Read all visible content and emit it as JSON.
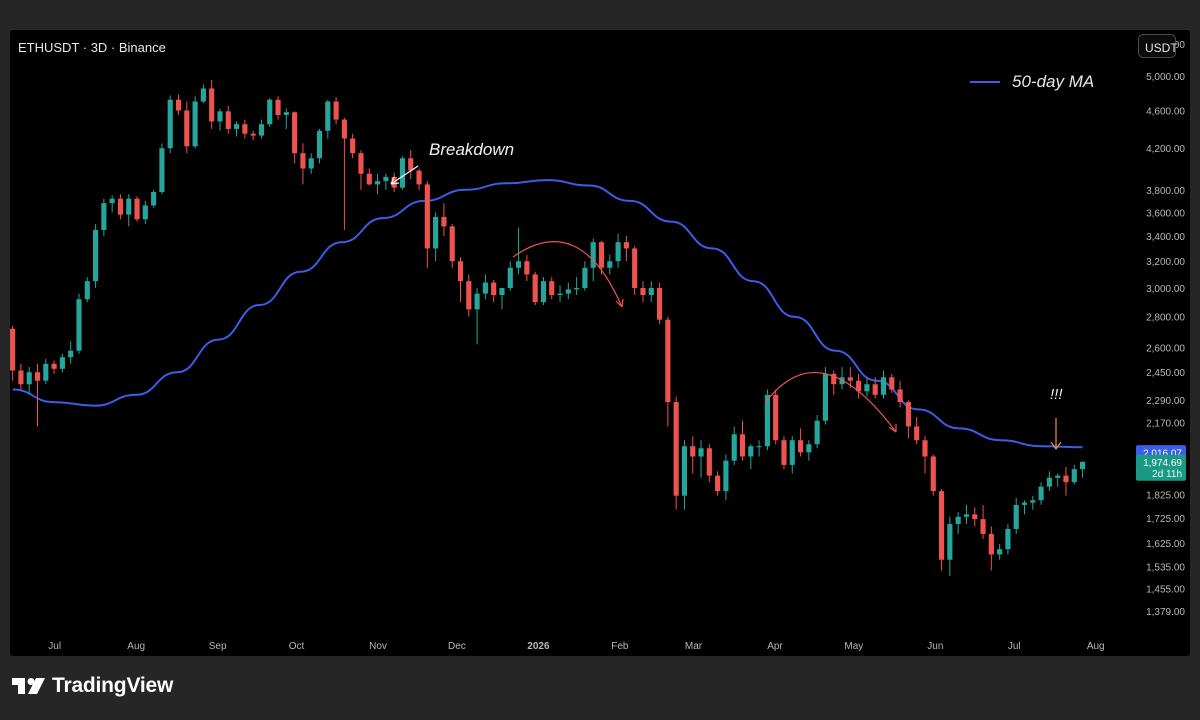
{
  "symbol": {
    "title": "ETHUSDT · 3D · Binance"
  },
  "currency_button": "USDT",
  "legend": {
    "ma_label": "50-day MA",
    "ma_color": "#3b5de7"
  },
  "brand": {
    "name": "TradingView"
  },
  "colors": {
    "up": "#26a69a",
    "down": "#ef5350",
    "ma": "#3b5de7",
    "annotation_arrow": "#ef5350",
    "marker_arrow": "#f0903a"
  },
  "annotations": {
    "breakdown": "Breakdown",
    "alert": "!!!"
  },
  "price_tags": {
    "ma_value": "2,016.07",
    "last_price": "1,974.69",
    "countdown": "2d 11h"
  },
  "chart_data": {
    "type": "candlestick",
    "title": "ETHUSDT · 3D · Binance",
    "y_scale": "log",
    "ylim": [
      1330,
      5450
    ],
    "y_ticks": [
      "5,400.00",
      "5,000.00",
      "4,600.00",
      "4,200.00",
      "3,800.00",
      "3,600.00",
      "3,400.00",
      "3,200.00",
      "3,000.00",
      "2,800.00",
      "2,600.00",
      "2,450.00",
      "2,290.00",
      "2,170.00",
      "2,016.07",
      "1,974.69",
      "1,825.00",
      "1,725.00",
      "1,625.00",
      "1,535.00",
      "1,455.00",
      "1,379.00"
    ],
    "y_tick_values": [
      5400,
      5000,
      4600,
      4200,
      3800,
      3600,
      3400,
      3200,
      3000,
      2800,
      2600,
      2450,
      2290,
      2170,
      2016.07,
      1974.69,
      1825,
      1725,
      1625,
      1535,
      1455,
      1379
    ],
    "x_ticks": [
      "Jul",
      "Aug",
      "Sep",
      "Oct",
      "Nov",
      "Dec",
      "2026",
      "Feb",
      "Mar",
      "Apr",
      "May",
      "Jun",
      "Jul",
      "Aug"
    ],
    "x_tick_dates": [
      "2025-07-01",
      "2025-08-01",
      "2025-09-01",
      "2025-10-01",
      "2025-11-01",
      "2025-12-01",
      "2026-01-01",
      "2026-02-01",
      "2026-03-01",
      "2026-04-01",
      "2026-05-01",
      "2026-06-01",
      "2026-07-01",
      "2026-08-01"
    ],
    "xlim": [
      "2025-06-14",
      "2026-08-11"
    ],
    "candles_ohlc": [
      [
        2720,
        2740,
        2400,
        2460
      ],
      [
        2460,
        2500,
        2350,
        2380
      ],
      [
        2380,
        2480,
        2330,
        2450
      ],
      [
        2450,
        2500,
        2150,
        2400
      ],
      [
        2400,
        2530,
        2380,
        2500
      ],
      [
        2500,
        2520,
        2440,
        2470
      ],
      [
        2470,
        2560,
        2450,
        2540
      ],
      [
        2540,
        2640,
        2500,
        2580
      ],
      [
        2580,
        2960,
        2560,
        2920
      ],
      [
        2920,
        3080,
        2900,
        3050
      ],
      [
        3050,
        3500,
        3000,
        3450
      ],
      [
        3450,
        3720,
        3400,
        3680
      ],
      [
        3680,
        3750,
        3600,
        3720
      ],
      [
        3720,
        3760,
        3540,
        3580
      ],
      [
        3580,
        3760,
        3480,
        3720
      ],
      [
        3720,
        3740,
        3520,
        3540
      ],
      [
        3540,
        3700,
        3500,
        3660
      ],
      [
        3660,
        3800,
        3640,
        3780
      ],
      [
        3780,
        4250,
        3760,
        4200
      ],
      [
        4200,
        4770,
        4150,
        4720
      ],
      [
        4720,
        4780,
        4550,
        4600
      ],
      [
        4600,
        4700,
        4150,
        4220
      ],
      [
        4220,
        4760,
        4200,
        4700
      ],
      [
        4700,
        4900,
        4680,
        4850
      ],
      [
        4850,
        4950,
        4400,
        4480
      ],
      [
        4480,
        4620,
        4380,
        4590
      ],
      [
        4590,
        4650,
        4350,
        4400
      ],
      [
        4400,
        4480,
        4320,
        4450
      ],
      [
        4450,
        4500,
        4300,
        4350
      ],
      [
        4350,
        4380,
        4280,
        4330
      ],
      [
        4330,
        4500,
        4300,
        4450
      ],
      [
        4450,
        4740,
        4420,
        4720
      ],
      [
        4720,
        4760,
        4500,
        4550
      ],
      [
        4550,
        4620,
        4400,
        4580
      ],
      [
        4580,
        4590,
        4050,
        4150
      ],
      [
        4150,
        4250,
        3850,
        4000
      ],
      [
        4000,
        4150,
        3950,
        4100
      ],
      [
        4100,
        4400,
        4050,
        4380
      ],
      [
        4380,
        4720,
        4300,
        4700
      ],
      [
        4700,
        4750,
        4450,
        4500
      ],
      [
        4500,
        4520,
        3450,
        4300
      ],
      [
        4300,
        4350,
        4100,
        4150
      ],
      [
        4150,
        4180,
        3800,
        3950
      ],
      [
        3950,
        4000,
        3840,
        3850
      ],
      [
        3850,
        3950,
        3760,
        3880
      ],
      [
        3880,
        3950,
        3800,
        3920
      ],
      [
        3920,
        3960,
        3780,
        3820
      ],
      [
        3820,
        4120,
        3800,
        4100
      ],
      [
        4100,
        4180,
        3900,
        3980
      ],
      [
        3980,
        4000,
        3800,
        3850
      ],
      [
        3850,
        3880,
        3150,
        3300
      ],
      [
        3300,
        3600,
        3200,
        3560
      ],
      [
        3560,
        3680,
        3400,
        3480
      ],
      [
        3480,
        3500,
        3150,
        3200
      ],
      [
        3200,
        3230,
        2900,
        3050
      ],
      [
        3050,
        3100,
        2800,
        2850
      ],
      [
        2850,
        3000,
        2620,
        2960
      ],
      [
        2960,
        3100,
        2920,
        3040
      ],
      [
        3040,
        3060,
        2900,
        2950
      ],
      [
        2950,
        3000,
        2850,
        3000
      ],
      [
        3000,
        3200,
        2980,
        3150
      ],
      [
        3150,
        3470,
        3100,
        3200
      ],
      [
        3200,
        3250,
        3050,
        3100
      ],
      [
        3100,
        3120,
        2880,
        2900
      ],
      [
        2900,
        3080,
        2880,
        3050
      ],
      [
        3050,
        3080,
        2920,
        2950
      ],
      [
        2950,
        3020,
        2900,
        2960
      ],
      [
        2960,
        3040,
        2920,
        2990
      ],
      [
        2990,
        3080,
        2950,
        3000
      ],
      [
        3000,
        3200,
        2980,
        3150
      ],
      [
        3150,
        3380,
        3050,
        3350
      ],
      [
        3350,
        3360,
        3100,
        3150
      ],
      [
        3150,
        3250,
        3100,
        3200
      ],
      [
        3200,
        3420,
        3150,
        3350
      ],
      [
        3350,
        3400,
        3200,
        3300
      ],
      [
        3300,
        3320,
        2950,
        3000
      ],
      [
        3000,
        3050,
        2900,
        2950
      ],
      [
        2950,
        3050,
        2900,
        3000
      ],
      [
        3000,
        3040,
        2750,
        2780
      ],
      [
        2780,
        2800,
        2150,
        2280
      ],
      [
        2280,
        2310,
        1760,
        1820
      ],
      [
        1820,
        2080,
        1760,
        2050
      ],
      [
        2050,
        2100,
        1920,
        2000
      ],
      [
        2000,
        2080,
        1900,
        2040
      ],
      [
        2040,
        2060,
        1880,
        1910
      ],
      [
        1910,
        1930,
        1820,
        1840
      ],
      [
        1840,
        2010,
        1800,
        1980
      ],
      [
        1980,
        2150,
        1960,
        2110
      ],
      [
        2110,
        2180,
        1980,
        2000
      ],
      [
        2000,
        2060,
        1940,
        2050
      ],
      [
        2050,
        2080,
        2000,
        2050
      ],
      [
        2050,
        2350,
        2030,
        2320
      ],
      [
        2320,
        2350,
        2060,
        2080
      ],
      [
        2080,
        2100,
        1940,
        1960
      ],
      [
        1960,
        2100,
        1920,
        2080
      ],
      [
        2080,
        2140,
        2000,
        2020
      ],
      [
        2020,
        2080,
        1980,
        2060
      ],
      [
        2060,
        2210,
        2040,
        2180
      ],
      [
        2180,
        2480,
        2160,
        2440
      ],
      [
        2440,
        2460,
        2320,
        2380
      ],
      [
        2380,
        2480,
        2350,
        2420
      ],
      [
        2420,
        2480,
        2360,
        2400
      ],
      [
        2400,
        2440,
        2300,
        2340
      ],
      [
        2340,
        2420,
        2310,
        2380
      ],
      [
        2380,
        2420,
        2300,
        2320
      ],
      [
        2320,
        2460,
        2300,
        2420
      ],
      [
        2420,
        2440,
        2330,
        2350
      ],
      [
        2350,
        2400,
        2250,
        2280
      ],
      [
        2280,
        2290,
        2090,
        2150
      ],
      [
        2150,
        2200,
        2060,
        2080
      ],
      [
        2080,
        2100,
        1920,
        2000
      ],
      [
        2000,
        2010,
        1820,
        1840
      ],
      [
        1840,
        1850,
        1520,
        1560
      ],
      [
        1560,
        1730,
        1500,
        1700
      ],
      [
        1700,
        1750,
        1660,
        1730
      ],
      [
        1730,
        1780,
        1700,
        1740
      ],
      [
        1740,
        1770,
        1690,
        1720
      ],
      [
        1720,
        1780,
        1640,
        1660
      ],
      [
        1660,
        1690,
        1520,
        1580
      ],
      [
        1580,
        1620,
        1560,
        1600
      ],
      [
        1600,
        1700,
        1580,
        1680
      ],
      [
        1680,
        1810,
        1660,
        1780
      ],
      [
        1780,
        1800,
        1740,
        1790
      ],
      [
        1790,
        1820,
        1760,
        1800
      ],
      [
        1800,
        1880,
        1780,
        1860
      ],
      [
        1860,
        1930,
        1840,
        1900
      ],
      [
        1900,
        1920,
        1860,
        1910
      ],
      [
        1910,
        1950,
        1820,
        1880
      ],
      [
        1880,
        1960,
        1870,
        1940
      ],
      [
        1940,
        1975,
        1900,
        1975
      ]
    ],
    "moving_average": {
      "name": "50-day MA",
      "values": [
        2350,
        2280,
        2260,
        2320,
        2450,
        2650,
        2880,
        3120,
        3350,
        3550,
        3700,
        3800,
        3860,
        3890,
        3840,
        3700,
        3520,
        3300,
        3050,
        2800,
        2580,
        2400,
        2240,
        2140,
        2080,
        2050,
        2045
      ]
    }
  }
}
